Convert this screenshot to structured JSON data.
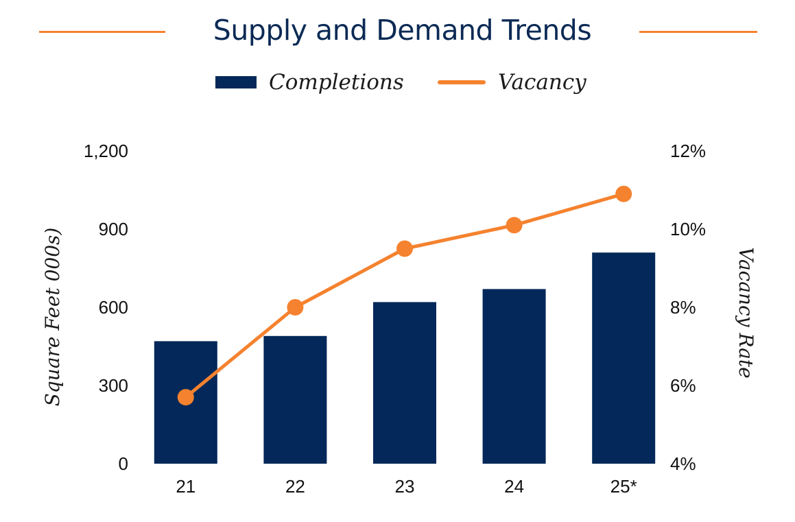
{
  "chart_data": {
    "type": "bar",
    "title": "Supply and Demand Trends",
    "categories": [
      "21",
      "22",
      "23",
      "24",
      "25*"
    ],
    "series": [
      {
        "name": "Completions",
        "type": "bar",
        "axis": "left",
        "values": [
          470,
          490,
          620,
          670,
          810
        ]
      },
      {
        "name": "Vacancy",
        "type": "line",
        "axis": "right",
        "values": [
          5.7,
          8.0,
          9.5,
          10.1,
          10.9
        ]
      }
    ],
    "ylabel": "Square Feet 000s)",
    "ylim": [
      0,
      1200
    ],
    "yticks": [
      "0",
      "300",
      "600",
      "900",
      "1,200"
    ],
    "y2label": "Vacancy Rate",
    "y2lim": [
      4,
      12
    ],
    "y2ticks": [
      "4%",
      "6%",
      "8%",
      "10%",
      "12%"
    ],
    "legend": "top-center",
    "grid": false
  },
  "colors": {
    "bar": "#032859",
    "line": "#F5822F",
    "title": "#0B2A55"
  }
}
